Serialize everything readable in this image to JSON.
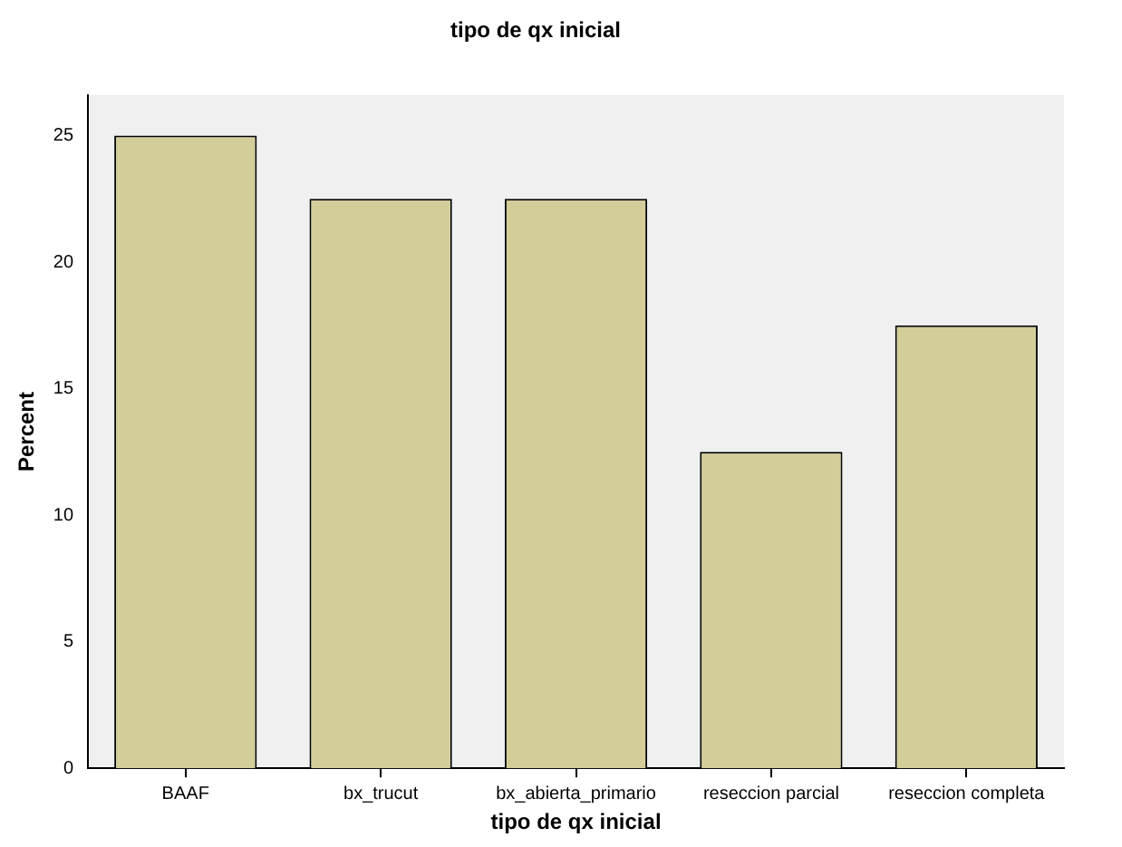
{
  "chart_data": {
    "type": "bar",
    "title": "tipo de qx inicial",
    "xlabel": "tipo de qx inicial",
    "ylabel": "Percent",
    "categories": [
      "BAAF",
      "bx_trucut",
      "bx_abierta_primario",
      "reseccion parcial",
      "reseccion completa"
    ],
    "values": [
      25,
      22.5,
      22.5,
      12.5,
      17.5
    ],
    "color": "#d3ce99",
    "ylim": [
      0,
      26.6
    ],
    "yticks": [
      0,
      5,
      10,
      15,
      20,
      25
    ],
    "grid": false,
    "legend": false
  }
}
